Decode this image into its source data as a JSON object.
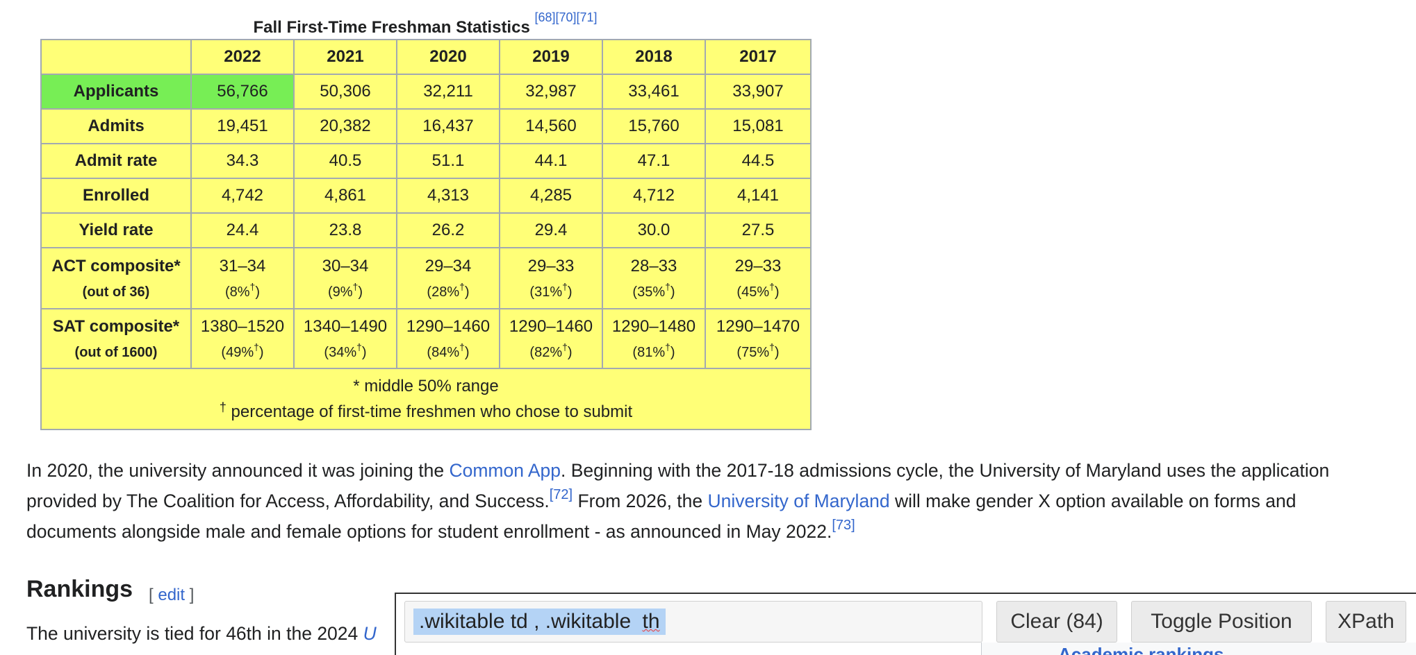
{
  "table": {
    "caption": "Fall First-Time Freshman Statistics",
    "caption_refs": "[68][70][71]",
    "years": [
      "2022",
      "2021",
      "2020",
      "2019",
      "2018",
      "2017"
    ],
    "rows": [
      {
        "label": "Applicants",
        "values": [
          "56,766",
          "50,306",
          "32,211",
          "32,987",
          "33,461",
          "33,907"
        ]
      },
      {
        "label": "Admits",
        "values": [
          "19,451",
          "20,382",
          "16,437",
          "14,560",
          "15,760",
          "15,081"
        ]
      },
      {
        "label": "Admit rate",
        "values": [
          "34.3",
          "40.5",
          "51.1",
          "44.1",
          "47.1",
          "44.5"
        ]
      },
      {
        "label": "Enrolled",
        "values": [
          "4,742",
          "4,861",
          "4,313",
          "4,285",
          "4,712",
          "4,141"
        ]
      },
      {
        "label": "Yield rate",
        "values": [
          "24.4",
          "23.8",
          "26.2",
          "29.4",
          "30.0",
          "27.5"
        ]
      }
    ],
    "act": {
      "label": "ACT composite*",
      "sublabel": "(out of 36)",
      "ranges": [
        "31–34",
        "30–34",
        "29–34",
        "29–33",
        "28–33",
        "29–33"
      ],
      "pcts": [
        "8%",
        "9%",
        "28%",
        "31%",
        "35%",
        "45%"
      ]
    },
    "sat": {
      "label": "SAT composite*",
      "sublabel": "(out of 1600)",
      "ranges": [
        "1380–1520",
        "1340–1490",
        "1290–1460",
        "1290–1460",
        "1290–1480",
        "1290–1470"
      ],
      "pcts": [
        "49%",
        "34%",
        "84%",
        "82%",
        "81%",
        "75%"
      ]
    },
    "dagger": "†",
    "note1": "* middle 50% range",
    "note2": "percentage of first-time freshmen who chose to submit"
  },
  "paragraph": {
    "p1": "In 2020, the university announced it was joining the ",
    "link_common_app": "Common App",
    "p2": ". Beginning with the 2017-18 admissions cycle, the University of Maryland uses the application provided by The Coalition for Access, Affordability, and Success.",
    "ref72": "[72]",
    "p3": " From 2026, the ",
    "link_umd": "University of Maryland",
    "p4": " will make gender X option available on forms and documents alongside male and female options for student enrollment - as announced in May 2022.",
    "ref73": "[73]"
  },
  "rankings": {
    "heading": "Rankings",
    "edit_open": "[ ",
    "edit_label": "edit",
    "edit_close": " ]",
    "text": "The university is tied for 46th in the 2024 ",
    "link_fragment": "U",
    "hidden_heading_fragment": "Academic rankings"
  },
  "overlay": {
    "selector_part1": ".wikitable td , .wikitable",
    "selector_part2": "th",
    "clear_label": "Clear (84)",
    "toggle_label": "Toggle Position",
    "xpath_label": "XPath"
  },
  "colors": {
    "table_bg": "#ffff77",
    "highlight_cell": "#77ee55",
    "link": "#3366cc",
    "selection": "#b4d3f5"
  }
}
